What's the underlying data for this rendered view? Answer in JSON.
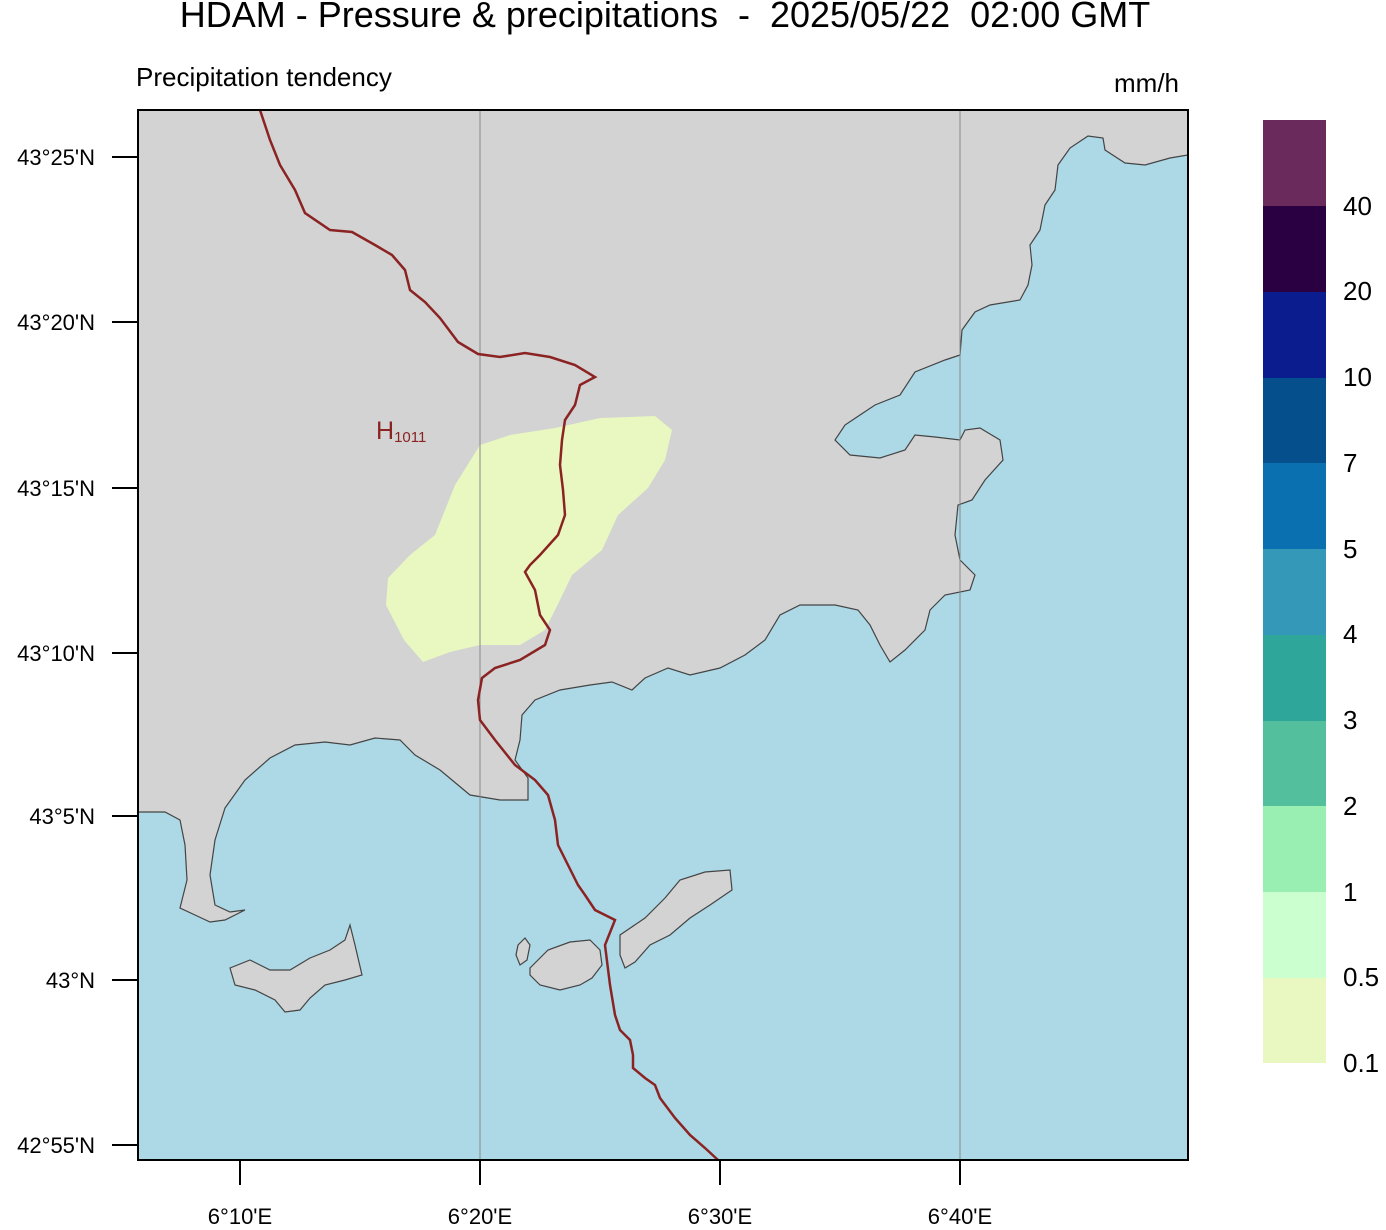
{
  "title": "HDAM - Pressure & precipitations  -  2025/05/22  02:00 GMT",
  "subtitle": "Precipitation tendency",
  "units": "mm/h",
  "pressure_label": {
    "letter": "H",
    "value": "1011"
  },
  "y_axis_labels": [
    "43°25'N",
    "43°20'N",
    "43°15'N",
    "43°10'N",
    "43°5'N",
    "43°N",
    "42°55'N"
  ],
  "x_axis_labels": [
    "6°10'E",
    "6°20'E",
    "6°30'E",
    "6°40'E"
  ],
  "colors": {
    "land": "#d3d3d3",
    "sea": "#add8e6",
    "isobar": "#8b2323",
    "precip_0_1": "#e8f8c0"
  },
  "colorbar": {
    "bins": [
      {
        "color": "#e8f8c0"
      },
      {
        "color": "#ccffd0"
      },
      {
        "color": "#99eeb2"
      },
      {
        "color": "#54bf9c"
      },
      {
        "color": "#2fa69a"
      },
      {
        "color": "#3498b8"
      },
      {
        "color": "#0a70b0"
      },
      {
        "color": "#054f8c"
      },
      {
        "color": "#0b1d8e"
      },
      {
        "color": "#2a0042"
      },
      {
        "color": "#6b2a5c"
      }
    ],
    "labels": [
      "0.1",
      "0.5",
      "1",
      "2",
      "3",
      "4",
      "5",
      "7",
      "10",
      "20",
      "40"
    ]
  }
}
